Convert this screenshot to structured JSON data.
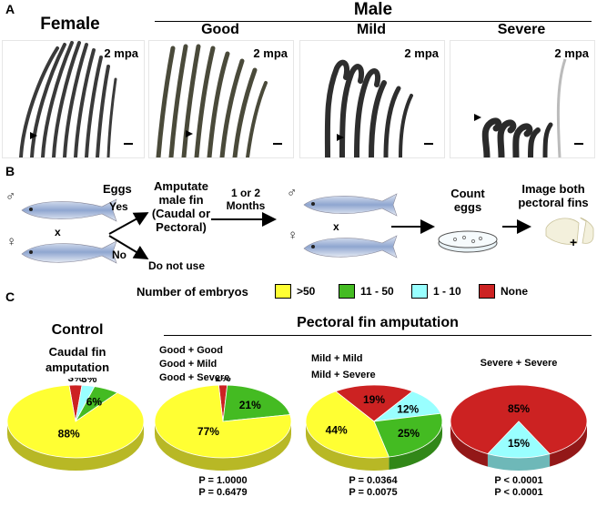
{
  "panel_a": {
    "letter": "A",
    "female_title": "Female",
    "male_title": "Male",
    "columns": [
      {
        "title": "",
        "age_label": "2 mpa"
      },
      {
        "title": "Good",
        "age_label": "2 mpa"
      },
      {
        "title": "Mild",
        "age_label": "2 mpa"
      },
      {
        "title": "Severe",
        "age_label": "2 mpa"
      }
    ]
  },
  "panel_b": {
    "letter": "B",
    "male_symbol": "♂",
    "female_symbol": "♀",
    "cross_symbol": "x",
    "eggs_label": "Eggs",
    "yes_label": "Yes",
    "no_label": "No",
    "amputate_lines": [
      "Amputate",
      "male fin",
      "(Caudal or",
      "Pectoral)"
    ],
    "do_not_use": "Do not use",
    "months_lines": [
      "1 or 2",
      "Months"
    ],
    "count_eggs_lines": [
      "Count",
      "eggs"
    ],
    "image_fins_lines": [
      "Image both",
      "pectoral fins"
    ],
    "plus_symbol": "+"
  },
  "panel_c": {
    "letter": "C",
    "legend_title": "Number of embryos",
    "legend": [
      {
        "label": ">50",
        "color": "#ffff33"
      },
      {
        "label": "11 - 50",
        "color": "#44bb22"
      },
      {
        "label": "1 - 10",
        "color": "#99ffff"
      },
      {
        "label": "None",
        "color": "#cc2222"
      }
    ],
    "control_title": "Control",
    "control_sub": [
      "Caudal fin",
      "amputation"
    ],
    "pectoral_title": "Pectoral fin amputation",
    "group_captions": [
      [
        "Good + Good",
        "Good + Mild",
        "Good + Severe"
      ],
      [
        "Mild + Mild",
        "Mild + Severe"
      ],
      [
        "Severe + Severe"
      ]
    ],
    "p_values": [
      [
        "P = 1.0000",
        "P = 0.6479"
      ],
      [
        "P = 0.0364",
        "P = 0.0075"
      ],
      [
        "P < 0.0001",
        "P < 0.0001"
      ]
    ]
  },
  "chart_data": [
    {
      "type": "pie",
      "categories": [
        ">50",
        "11 - 50",
        "1 - 10",
        "None"
      ],
      "values": [
        88,
        6,
        3,
        3
      ],
      "labels": [
        "88%",
        "6%",
        "3%",
        "3%"
      ]
    },
    {
      "type": "pie",
      "categories": [
        ">50",
        "11 - 50",
        "1 - 10",
        "None"
      ],
      "values": [
        77,
        21,
        0,
        2
      ],
      "labels": [
        "77%",
        "21%",
        "",
        "2%"
      ]
    },
    {
      "type": "pie",
      "categories": [
        ">50",
        "11 - 50",
        "1 - 10",
        "None"
      ],
      "values": [
        44,
        25,
        12,
        19
      ],
      "labels": [
        "44%",
        "25%",
        "12%",
        "19%"
      ]
    },
    {
      "type": "pie",
      "categories": [
        ">50",
        "11 - 50",
        "1 - 10",
        "None"
      ],
      "values": [
        0,
        0,
        15,
        85
      ],
      "labels": [
        "",
        "",
        "15%",
        "85%"
      ]
    }
  ]
}
